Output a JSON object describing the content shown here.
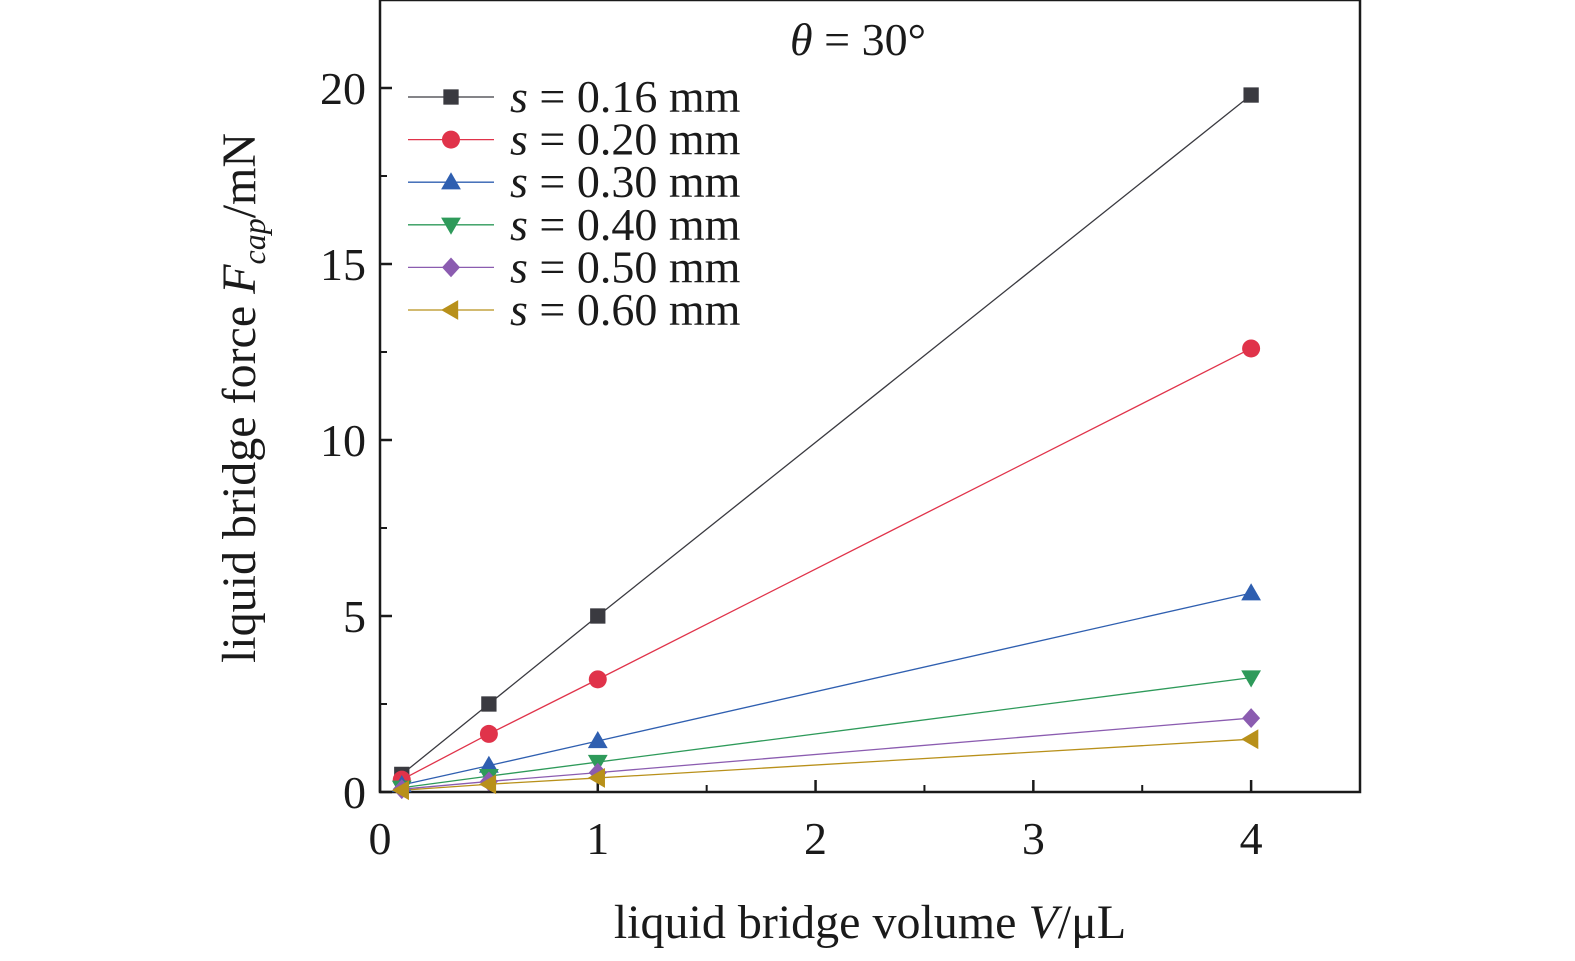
{
  "chart_data": {
    "type": "line",
    "title": {
      "symbol": "θ",
      "text": " = 30°"
    },
    "xlabel": {
      "text": "liquid bridge volume ",
      "symbol": "V",
      "unit": "/μL"
    },
    "ylabel": {
      "text": "liquid bridge force ",
      "symbol": "F",
      "subscript": "cap",
      "unit": "/mN"
    },
    "xlim": [
      0,
      4.5
    ],
    "ylim": [
      0,
      22.5
    ],
    "xticks": [
      0,
      1,
      2,
      3,
      4
    ],
    "yticks": [
      0,
      5,
      10,
      15,
      20
    ],
    "xtick_labels": [
      "0",
      "1",
      "2",
      "3",
      "4"
    ],
    "ytick_labels": [
      "0",
      "5",
      "10",
      "15",
      "20"
    ],
    "grid": false,
    "legend_position": "top-left",
    "x": [
      0.1,
      0.5,
      1,
      4
    ],
    "series": [
      {
        "name": "s = 0.16 mm",
        "var": "s",
        "label_text": " = 0.16 mm",
        "color": "#3a3a40",
        "marker": "square",
        "values": [
          0.5,
          2.5,
          5.0,
          19.8
        ]
      },
      {
        "name": "s = 0.20 mm",
        "var": "s",
        "label_text": " = 0.20 mm",
        "color": "#e0334a",
        "marker": "circle",
        "values": [
          0.35,
          1.65,
          3.2,
          12.6
        ]
      },
      {
        "name": "s = 0.30 mm",
        "var": "s",
        "label_text": " = 0.30 mm",
        "color": "#2f5fb0",
        "marker": "triangle-up",
        "values": [
          0.2,
          0.75,
          1.45,
          5.65
        ]
      },
      {
        "name": "s = 0.40 mm",
        "var": "s",
        "label_text": " = 0.40 mm",
        "color": "#2e9a5a",
        "marker": "triangle-down",
        "values": [
          0.12,
          0.45,
          0.85,
          3.25
        ]
      },
      {
        "name": "s = 0.50 mm",
        "var": "s",
        "label_text": " = 0.50 mm",
        "color": "#8b5cb0",
        "marker": "diamond",
        "values": [
          0.08,
          0.3,
          0.55,
          2.1
        ]
      },
      {
        "name": "s = 0.60 mm",
        "var": "s",
        "label_text": " = 0.60 mm",
        "color": "#b8901a",
        "marker": "triangle-left",
        "values": [
          0.05,
          0.22,
          0.4,
          1.5
        ]
      }
    ]
  }
}
